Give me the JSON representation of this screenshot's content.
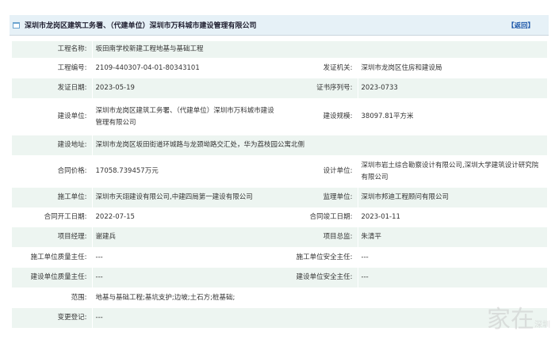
{
  "header": {
    "title": "深圳市龙岗区建筑工务署、（代建单位）深圳市万科城市建设管理有限公司",
    "back_label": "【返回】"
  },
  "rows": [
    {
      "label": "工程名称:",
      "value": "坂田南学校新建工程地基与基础工程",
      "label2": null,
      "value2": null
    },
    {
      "label": "工程编号:",
      "value": "2109-440307-04-01-80343101",
      "label2": "发证机关:",
      "value2": "深圳市龙岗区住房和建设局"
    },
    {
      "label": "发证日期:",
      "value": "2023-05-19",
      "label2": "证书序列号:",
      "value2": "2023-0733"
    },
    {
      "label": "建设单位:",
      "value": "深圳市龙岗区建筑工务署、（代建单位）深圳市万科城市建设管理有限公司",
      "label2": "建设规模:",
      "value2": "38097.81平方米"
    },
    {
      "label": "建设地址:",
      "value": "深圳市龙岗区坂田街道环城路与龙颈坳路交汇处，华为荔枝园公寓北侧",
      "label2": null,
      "value2": null
    },
    {
      "label": "合同价格:",
      "value": "17058.739457万元",
      "label2": "设计单位:",
      "value2": "深圳市岩土综合勘察设计有限公司,深圳大学建筑设计研究院有限公司"
    },
    {
      "label": "施工单位:",
      "value": "深圳市天翊建设有限公司,中建四局第一建设有限公司",
      "label2": "监理单位:",
      "value2": "深圳市邦迪工程顾问有限公司"
    },
    {
      "label": "合同开工日期:",
      "value": "2022-07-15",
      "label2": "合同竣工日期:",
      "value2": "2023-01-11"
    },
    {
      "label": "项目经理:",
      "value": "谢建兵",
      "label2": "项目总监:",
      "value2": "朱清平"
    },
    {
      "label": "施工单位质量主任:",
      "value": "---",
      "label2": "施工单位安全主任:",
      "value2": "---"
    },
    {
      "label": "建设单位质量主任:",
      "value": "---",
      "label2": "建设单位安全主任:",
      "value2": "---"
    },
    {
      "label": "范围:",
      "value": "地基与基础工程;基坑支护;边坡;土石方;桩基础;",
      "label2": null,
      "value2": null
    },
    {
      "label": "变更登记:",
      "value": "---",
      "label2": null,
      "value2": null
    }
  ],
  "watermark": {
    "text": "家在",
    "sub": "深圳"
  }
}
